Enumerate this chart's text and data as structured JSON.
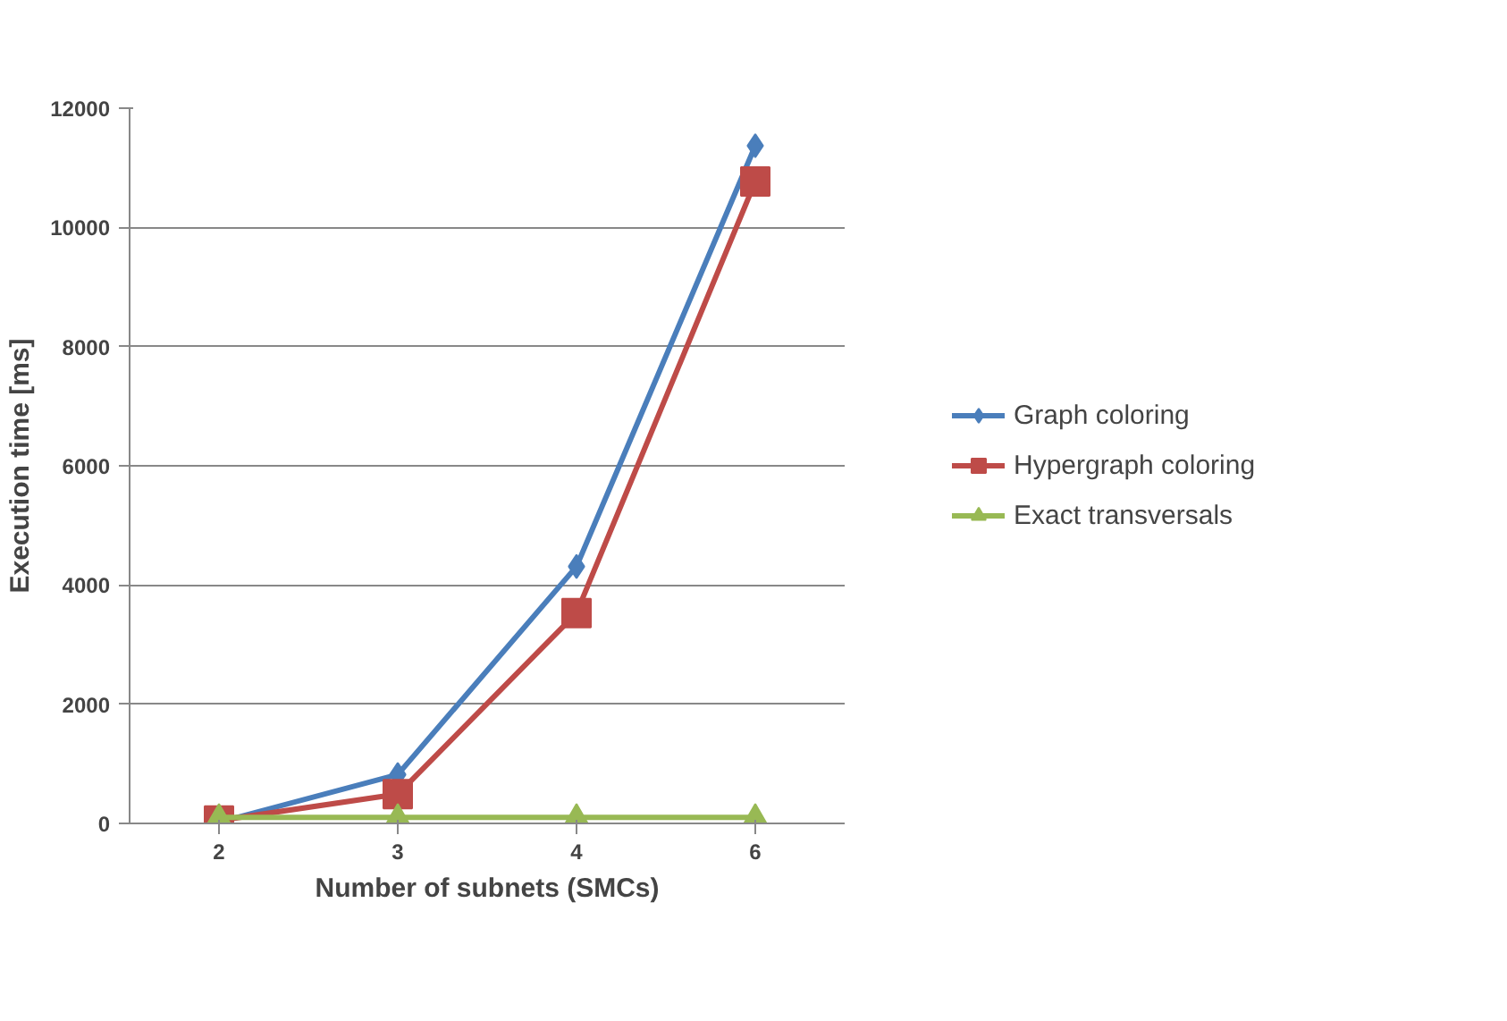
{
  "chart_data": {
    "type": "line",
    "xlabel": "Number of subnets (SMCs)",
    "ylabel": "Execution time [ms]",
    "categories": [
      "2",
      "3",
      "4",
      "6"
    ],
    "ylim": [
      0,
      12000
    ],
    "yticks": [
      0,
      2000,
      4000,
      6000,
      8000,
      10000,
      12000
    ],
    "grid": "y",
    "legend": "right",
    "series": [
      {
        "name": "Graph coloring",
        "color": "#4a7ebb",
        "marker": "diamond",
        "values": [
          20,
          820,
          4310,
          11370
        ]
      },
      {
        "name": "Hypergraph coloring",
        "color": "#be4b48",
        "marker": "square",
        "values": [
          50,
          490,
          3530,
          10770
        ]
      },
      {
        "name": "Exact transversals",
        "color": "#98b954",
        "marker": "triangle",
        "values": [
          100,
          100,
          100,
          100
        ]
      }
    ]
  }
}
